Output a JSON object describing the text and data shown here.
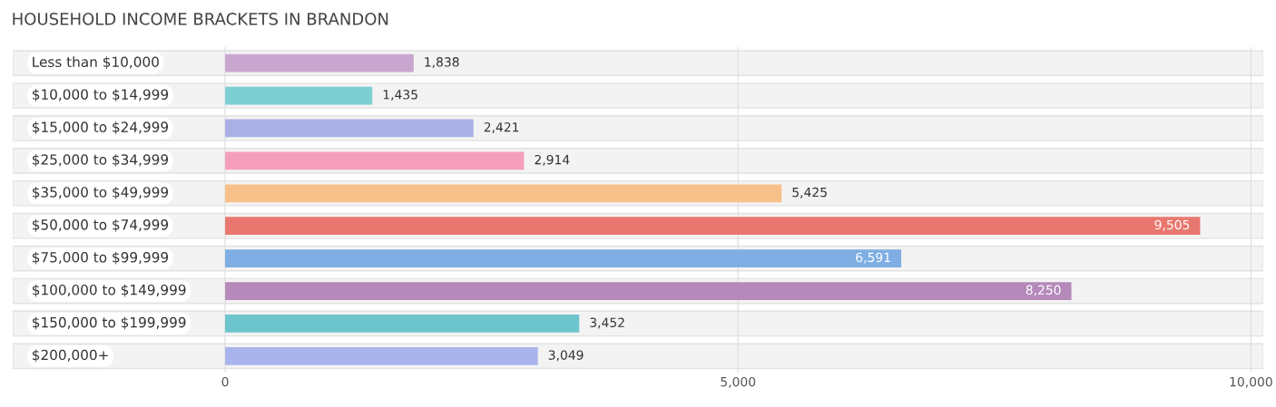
{
  "chart_data": {
    "type": "bar",
    "orientation": "horizontal",
    "title": "HOUSEHOLD INCOME BRACKETS IN BRANDON",
    "categories": [
      "Less than $10,000",
      "$10,000 to $14,999",
      "$15,000 to $24,999",
      "$25,000 to $34,999",
      "$35,000 to $49,999",
      "$50,000 to $74,999",
      "$75,000 to $99,999",
      "$100,000 to $149,999",
      "$150,000 to $199,999",
      "$200,000+"
    ],
    "values": [
      1838,
      1435,
      2421,
      2914,
      5425,
      9505,
      6591,
      8250,
      3452,
      3049
    ],
    "colors": [
      "#c9a6d0",
      "#7dcfd3",
      "#a9b0e6",
      "#f59fbd",
      "#f8c18a",
      "#e8786f",
      "#7eaee3",
      "#b58abb",
      "#6cc4cc",
      "#a9b4ec"
    ],
    "value_labels": [
      "1,838",
      "1,435",
      "2,421",
      "2,914",
      "5,425",
      "9,505",
      "6,591",
      "8,250",
      "3,452",
      "3,049"
    ],
    "xlim": [
      -2070,
      10120
    ],
    "xticks": [
      {
        "value": 0,
        "label": "0"
      },
      {
        "value": 5000,
        "label": "5,000"
      },
      {
        "value": 10000,
        "label": "10,000"
      }
    ],
    "grid": "x"
  }
}
